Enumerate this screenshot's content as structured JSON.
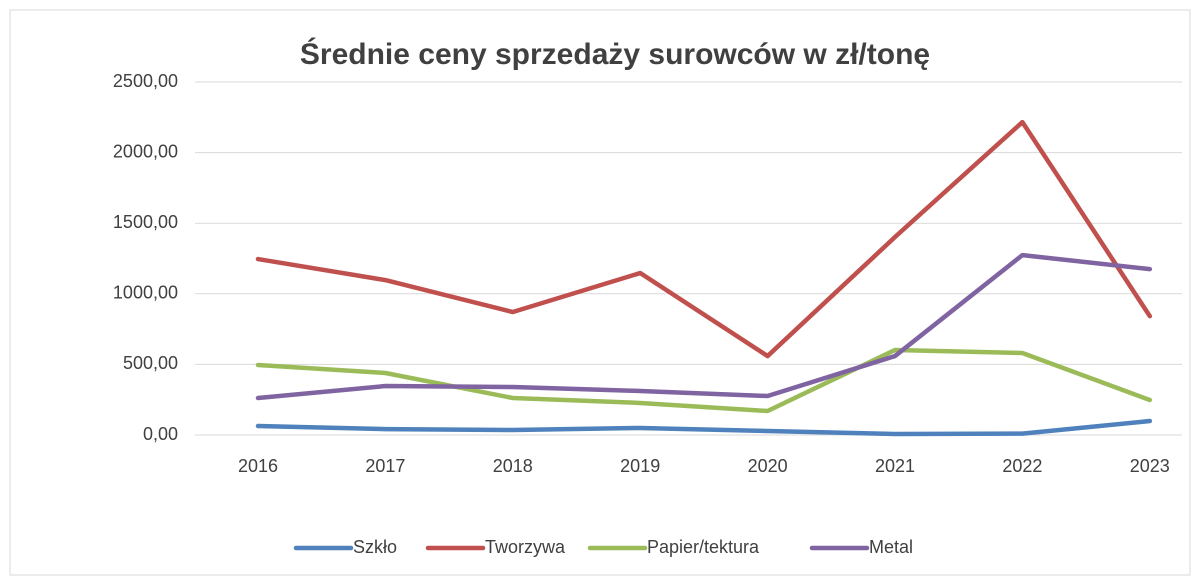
{
  "chart_data": {
    "type": "line",
    "title": "Średnie ceny sprzedaży surowców w zł/tonę",
    "categories": [
      "2016",
      "2017",
      "2018",
      "2019",
      "2020",
      "2021",
      "2022",
      "2023"
    ],
    "series": [
      {
        "name": "Szkło",
        "color": "#4f81bd",
        "values": [
          64,
          42,
          35,
          50,
          28,
          7,
          10,
          99
        ]
      },
      {
        "name": "Tworzywa",
        "color": "#c0504d",
        "values": [
          1246,
          1097,
          871,
          1147,
          559,
          1402,
          2216,
          842
        ]
      },
      {
        "name": "Papier/tektura",
        "color": "#9bbb59",
        "values": [
          496,
          439,
          262,
          227,
          170,
          602,
          581,
          248
        ]
      },
      {
        "name": "Metal",
        "color": "#8064a2",
        "values": [
          262,
          347,
          340,
          312,
          276,
          559,
          1274,
          1175
        ]
      }
    ],
    "ylim": [
      0,
      2500
    ],
    "yticks": [
      {
        "value": 0,
        "label": "0,00"
      },
      {
        "value": 500,
        "label": "500,00"
      },
      {
        "value": 1000,
        "label": "1000,00"
      },
      {
        "value": 1500,
        "label": "1500,00"
      },
      {
        "value": 2000,
        "label": "2000,00"
      },
      {
        "value": 2500,
        "label": "2500,00"
      }
    ],
    "grid": true,
    "legend": "bottom"
  }
}
